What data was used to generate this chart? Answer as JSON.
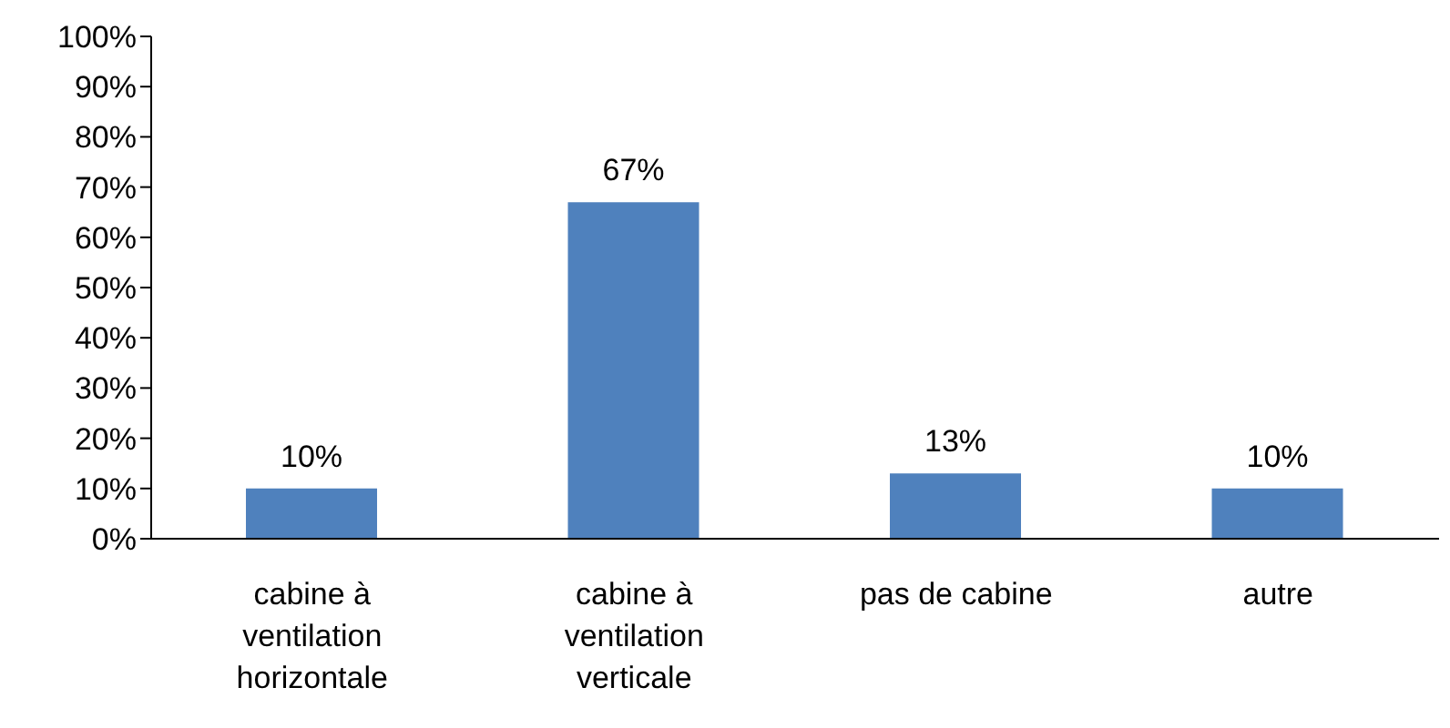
{
  "chart_data": {
    "type": "bar",
    "categories": [
      "cabine à ventilation horizontale",
      "cabine à ventilation verticale",
      "pas de cabine",
      "autre"
    ],
    "values": [
      10,
      67,
      13,
      10
    ],
    "value_labels": [
      "10%",
      "67%",
      "13%",
      "10%"
    ],
    "color": "#4f81bd",
    "ylim": [
      0,
      100
    ],
    "yticks": [
      {
        "value": 0,
        "label": "0%"
      },
      {
        "value": 10,
        "label": "10%"
      },
      {
        "value": 20,
        "label": "20%"
      },
      {
        "value": 30,
        "label": "30%"
      },
      {
        "value": 40,
        "label": "40%"
      },
      {
        "value": 50,
        "label": "50%"
      },
      {
        "value": 60,
        "label": "60%"
      },
      {
        "value": 70,
        "label": "70%"
      },
      {
        "value": 80,
        "label": "80%"
      },
      {
        "value": 90,
        "label": "90%"
      },
      {
        "value": 100,
        "label": "100%"
      }
    ]
  }
}
